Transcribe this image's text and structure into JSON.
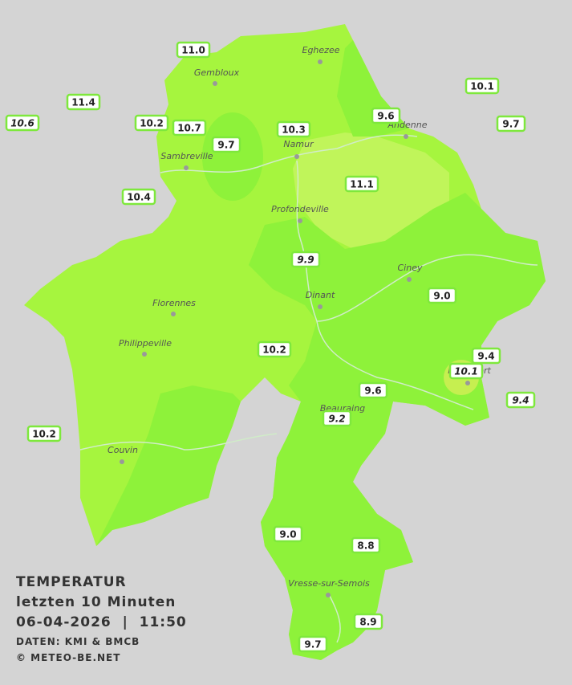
{
  "title": "TEMPERATUR",
  "subtitle": "letzten 10 Minuten",
  "timestamp": "06-04-2026  |  11:50",
  "source": "DATEN: KMI & BMCB",
  "copyright": "© METEO-BE.NET",
  "cities": [
    "Eghezee",
    "Gembloux",
    "Andenne",
    "Namur",
    "Sambreville",
    "Profondeville",
    "Ciney",
    "Dinant",
    "Florennes",
    "Philippeville",
    "Beauraing",
    "Rochefort",
    "Couvin",
    "Vresse-sur-Semois"
  ],
  "stations": [
    {
      "label": "11.0",
      "italic": false
    },
    {
      "label": "11.4",
      "italic": false
    },
    {
      "label": "10.6",
      "italic": true
    },
    {
      "label": "10.2",
      "italic": false
    },
    {
      "label": "10.7",
      "italic": false
    },
    {
      "label": "9.7",
      "italic": false
    },
    {
      "label": "10.3",
      "italic": false
    },
    {
      "label": "9.6",
      "italic": false
    },
    {
      "label": "10.1",
      "italic": false
    },
    {
      "label": "9.7",
      "italic": false
    },
    {
      "label": "11.1",
      "italic": false
    },
    {
      "label": "10.4",
      "italic": false
    },
    {
      "label": "9.9",
      "italic": true
    },
    {
      "label": "9.0",
      "italic": false
    },
    {
      "label": "10.2",
      "italic": false
    },
    {
      "label": "9.4",
      "italic": false
    },
    {
      "label": "10.1",
      "italic": true
    },
    {
      "label": "9.6",
      "italic": false
    },
    {
      "label": "9.4",
      "italic": true
    },
    {
      "label": "9.2",
      "italic": true
    },
    {
      "label": "10.2",
      "italic": false
    },
    {
      "label": "9.0",
      "italic": false
    },
    {
      "label": "8.8",
      "italic": false
    },
    {
      "label": "8.9",
      "italic": false
    },
    {
      "label": "9.7",
      "italic": false
    }
  ]
}
